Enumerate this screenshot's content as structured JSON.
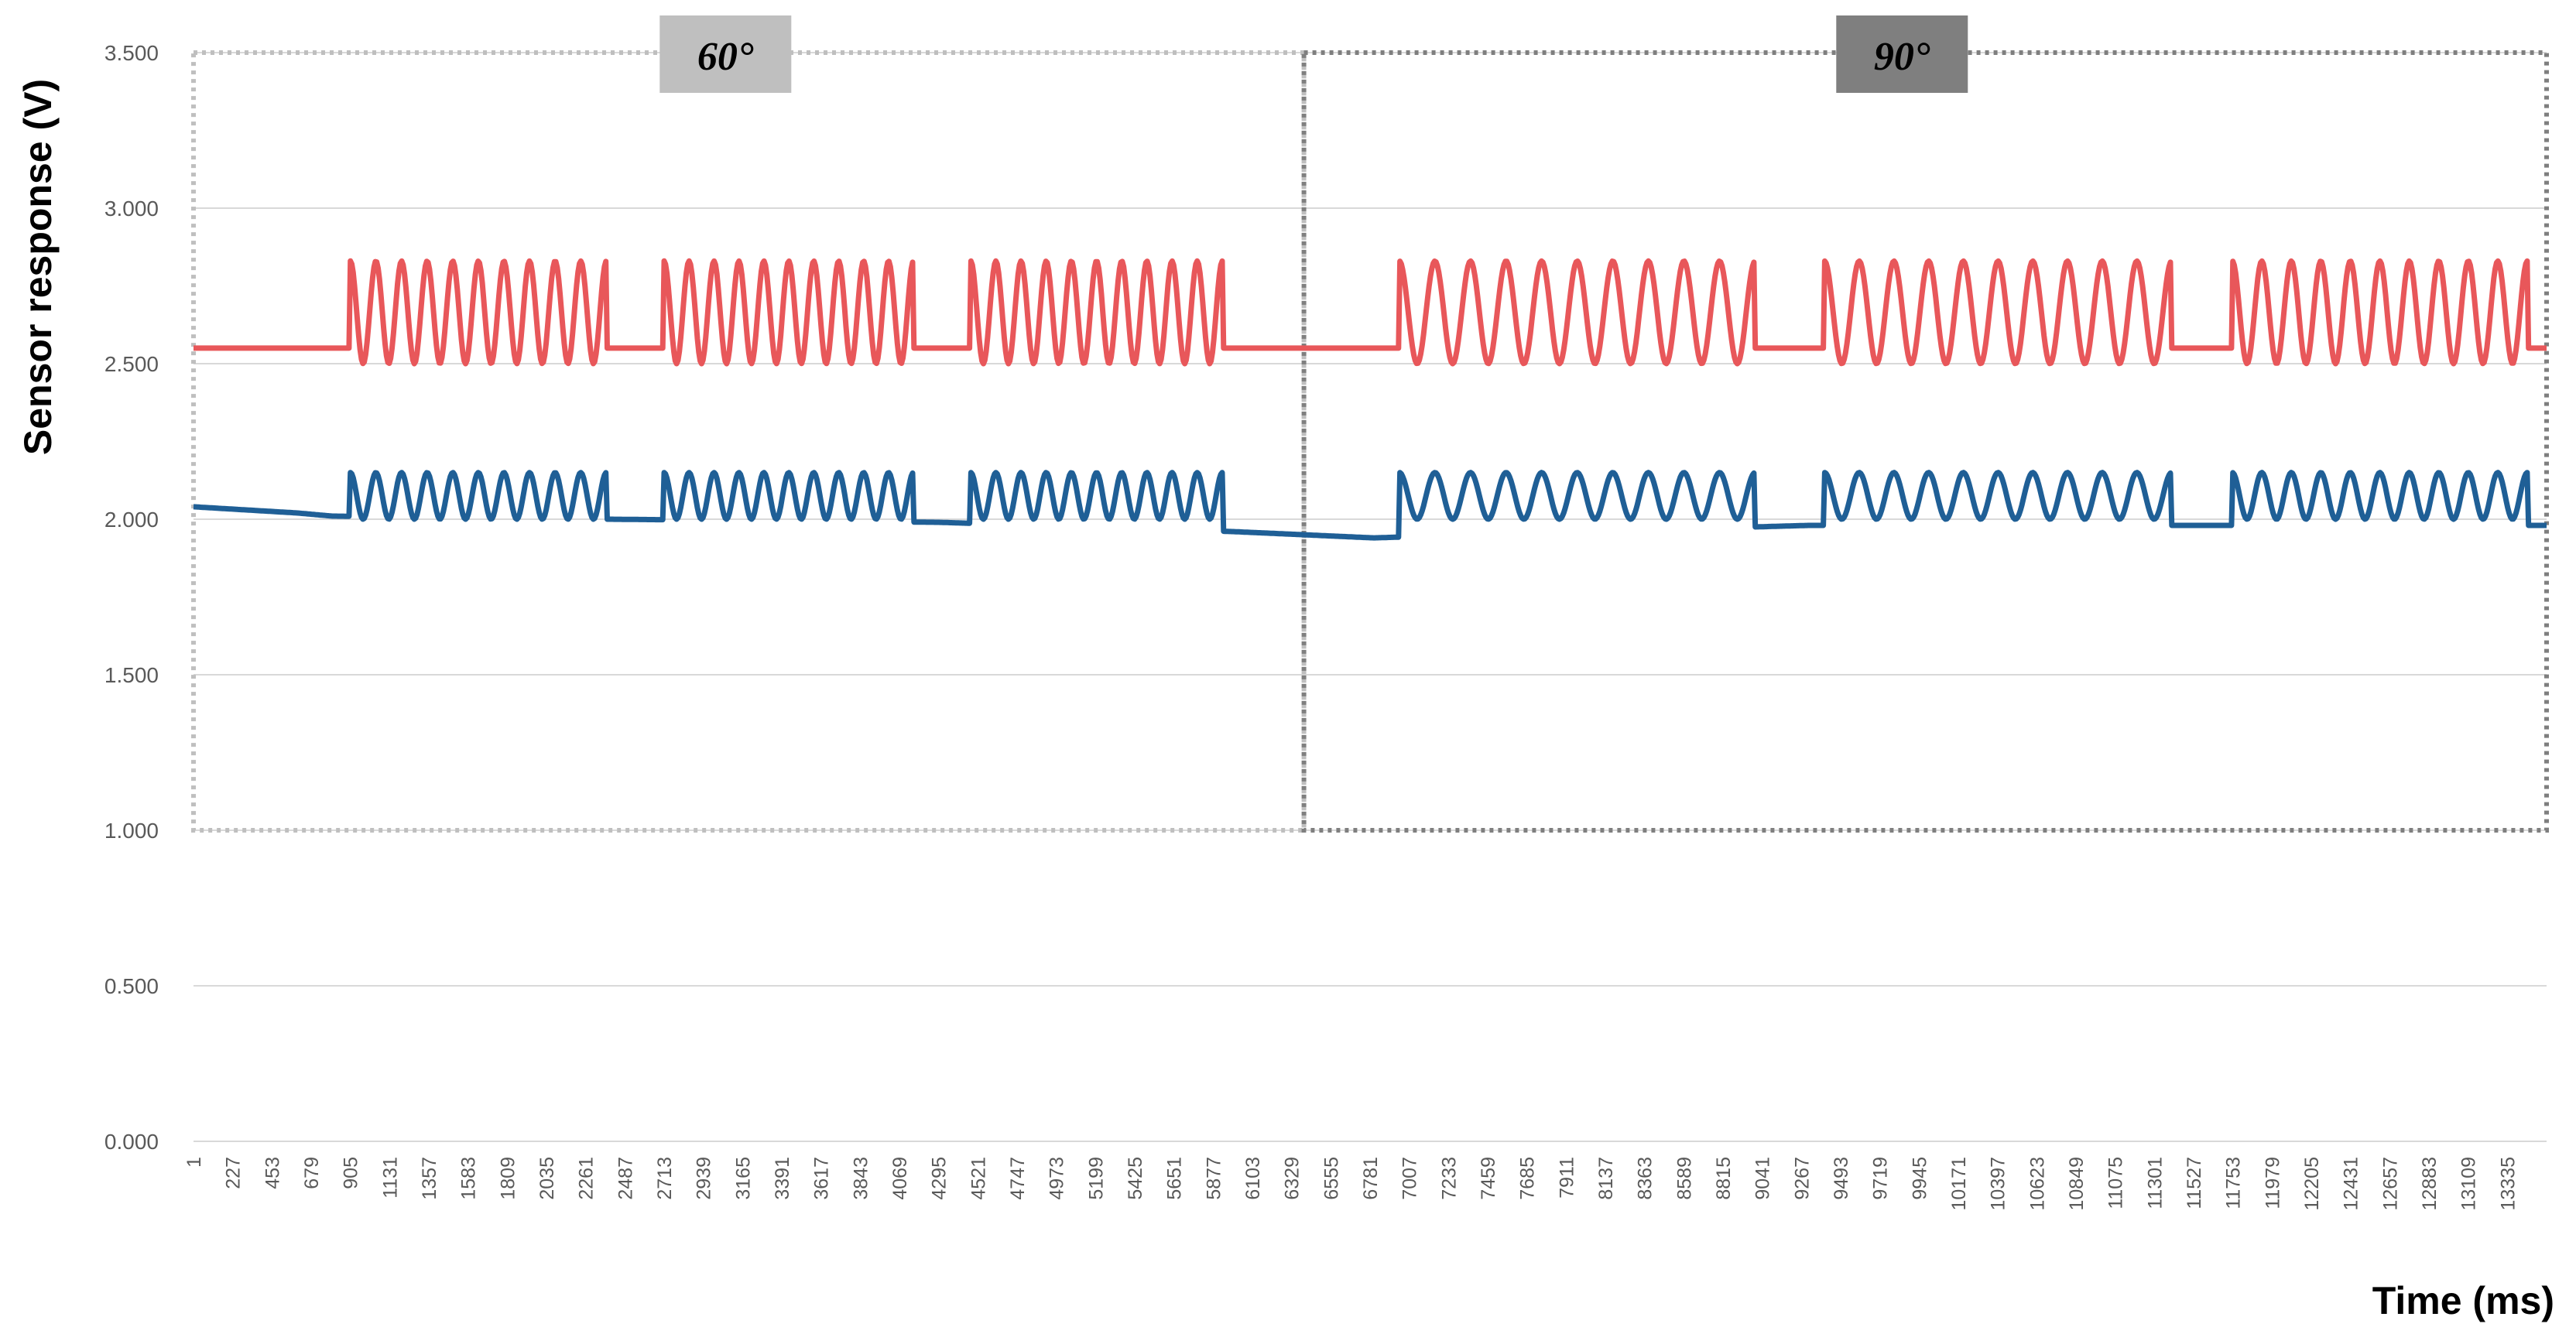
{
  "chart_data": {
    "type": "line",
    "ylabel": "Sensor response (V)",
    "xlabel": "Time (ms)",
    "ylim": [
      0,
      3.5
    ],
    "xlim": [
      1,
      13561
    ],
    "y_ticks": [
      "0.000",
      "0.500",
      "1.000",
      "1.500",
      "2.000",
      "2.500",
      "3.000",
      "3.500"
    ],
    "x_ticks": [
      "1",
      "227",
      "453",
      "679",
      "905",
      "1131",
      "1357",
      "1583",
      "1809",
      "2035",
      "2261",
      "2487",
      "2713",
      "2939",
      "3165",
      "3391",
      "3617",
      "3843",
      "4069",
      "4295",
      "4521",
      "4747",
      "4973",
      "5199",
      "5425",
      "5651",
      "5877",
      "6103",
      "6329",
      "6555",
      "6781",
      "7007",
      "7233",
      "7459",
      "7685",
      "7911",
      "8137",
      "8363",
      "8589",
      "8815",
      "9041",
      "9267",
      "9493",
      "9719",
      "9945",
      "10171",
      "10397",
      "10623",
      "10849",
      "11075",
      "11301",
      "11527",
      "11753",
      "11979",
      "12205",
      "12431",
      "12657",
      "12883",
      "13109",
      "13335"
    ],
    "grid": "horizontal",
    "legend": "none",
    "annotations": [
      {
        "label": "60°",
        "x_range": [
          1,
          6400
        ],
        "y_range": [
          1.0,
          3.5
        ],
        "color": "#bfbfbf"
      },
      {
        "label": "90°",
        "x_range": [
          6400,
          13561
        ],
        "y_range": [
          1.0,
          3.5
        ],
        "color": "#7f7f7f"
      }
    ],
    "series": [
      {
        "color": "#e8575a",
        "baseline": 2.55,
        "oscillation": {
          "low": 2.5,
          "high": 2.83
        },
        "active_intervals": [
          [
            905,
            2380
          ],
          [
            2713,
            4150
          ],
          [
            4480,
            5930
          ],
          [
            6950,
            9000
          ],
          [
            9400,
            11400
          ],
          [
            11750,
            13450
          ]
        ],
        "cycles": [
          10,
          10,
          10,
          10,
          10,
          10
        ]
      },
      {
        "color": "#1f5f96",
        "baseline_points": [
          [
            1,
            2.04
          ],
          [
            600,
            2.02
          ],
          [
            800,
            2.01
          ],
          [
            2400,
            2.0
          ],
          [
            4300,
            1.99
          ],
          [
            6000,
            1.96
          ],
          [
            6800,
            1.94
          ],
          [
            9300,
            1.98
          ],
          [
            11700,
            1.98
          ],
          [
            13561,
            1.98
          ]
        ],
        "oscillation": {
          "low": 2.0,
          "high": 2.15
        },
        "active_intervals": [
          [
            905,
            2380
          ],
          [
            2713,
            4150
          ],
          [
            4480,
            5930
          ],
          [
            6950,
            9000
          ],
          [
            9400,
            11400
          ],
          [
            11750,
            13450
          ]
        ],
        "cycles": [
          10,
          10,
          10,
          10,
          10,
          10
        ]
      }
    ]
  }
}
